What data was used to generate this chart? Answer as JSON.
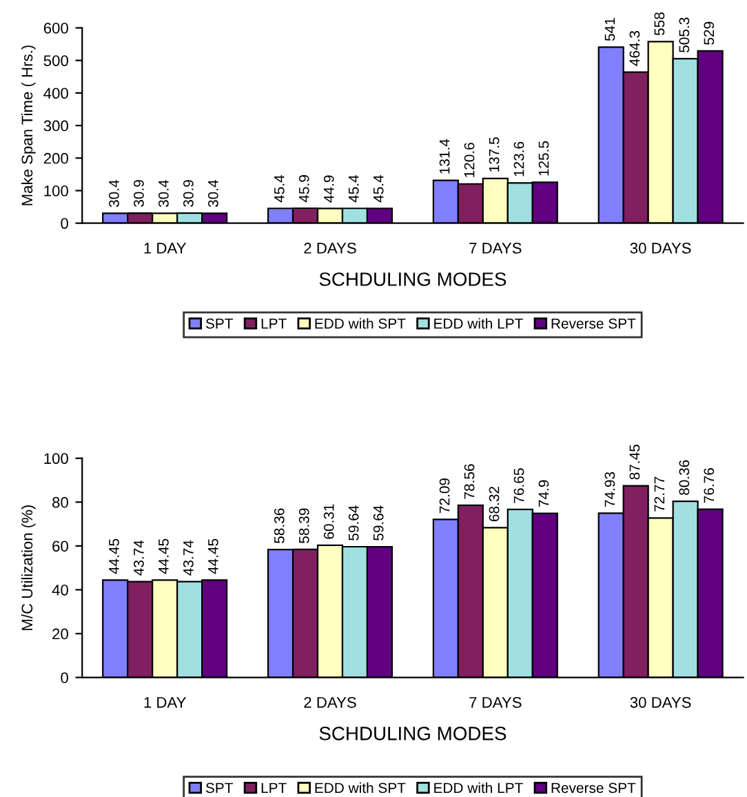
{
  "chart_data": [
    {
      "type": "bar",
      "xlabel": "SCHDULING MODES",
      "ylabel": "Make Span Time ( Hrs.)",
      "categories": [
        "1 DAY",
        "2 DAYS",
        "7 DAYS",
        "30 DAYS"
      ],
      "series": [
        {
          "name": "SPT",
          "color": "#8080ff",
          "values": [
            30.4,
            45.4,
            131.4,
            541
          ]
        },
        {
          "name": "LPT",
          "color": "#802060",
          "values": [
            30.9,
            45.9,
            120.6,
            464.3
          ]
        },
        {
          "name": "EDD with SPT",
          "color": "#ffffc0",
          "values": [
            30.4,
            44.9,
            137.5,
            558
          ]
        },
        {
          "name": "EDD with LPT",
          "color": "#a0e0e0",
          "values": [
            30.9,
            45.4,
            123.6,
            505.3
          ]
        },
        {
          "name": "Reverse SPT",
          "color": "#600080",
          "values": [
            30.4,
            45.4,
            125.5,
            529
          ]
        }
      ],
      "ylim": [
        0,
        600
      ],
      "yticks": [
        0,
        100,
        200,
        300,
        400,
        500,
        600
      ],
      "data_labels": true,
      "grid": false,
      "legend": "bottom"
    },
    {
      "type": "bar",
      "xlabel": "SCHDULING MODES",
      "ylabel": "M/C Utilization (%)",
      "categories": [
        "1 DAY",
        "2 DAYS",
        "7 DAYS",
        "30 DAYS"
      ],
      "series": [
        {
          "name": "SPT",
          "color": "#8080ff",
          "values": [
            44.45,
            58.36,
            72.09,
            74.93
          ]
        },
        {
          "name": "LPT",
          "color": "#802060",
          "values": [
            43.74,
            58.39,
            78.56,
            87.45
          ]
        },
        {
          "name": "EDD with SPT",
          "color": "#ffffc0",
          "values": [
            44.45,
            60.31,
            68.32,
            72.77
          ]
        },
        {
          "name": "EDD with LPT",
          "color": "#a0e0e0",
          "values": [
            43.74,
            59.64,
            76.65,
            80.36
          ]
        },
        {
          "name": "Reverse SPT",
          "color": "#600080",
          "values": [
            44.45,
            59.64,
            74.9,
            76.76
          ]
        }
      ],
      "ylim": [
        0,
        100
      ],
      "yticks": [
        0,
        20,
        40,
        60,
        80,
        100
      ],
      "data_labels": true,
      "grid": false,
      "legend": "bottom"
    }
  ]
}
